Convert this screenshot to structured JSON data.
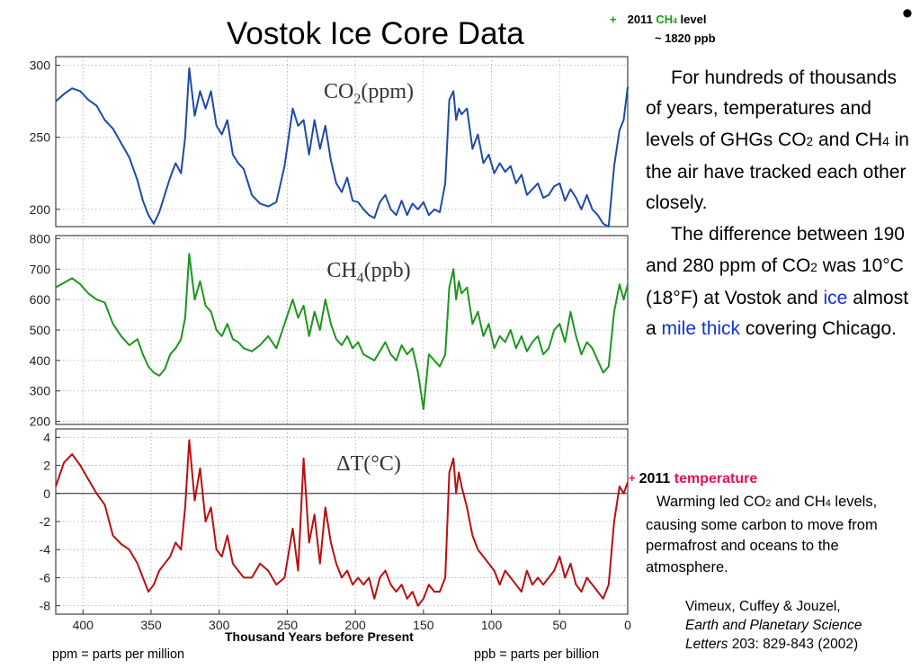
{
  "title": "Vostok Ice Core Data",
  "bullet": "•",
  "ch4_note": {
    "prefix": "+",
    "year": "2011",
    "gas": "CH",
    "sub": "4",
    "suffix": "level",
    "value": "~ 1820 ppb"
  },
  "temp_note": {
    "prefix": "+",
    "year": "2011",
    "label": "temperature"
  },
  "paragraph1": {
    "a": "For hundreds of thousands of years, temperatures and levels of GHGs CO",
    "b": "2",
    "c": " and CH",
    "d": "4",
    "e": " in the air have tracked each other closely."
  },
  "paragraph2": {
    "a": "The difference between 190 and 280 ppm of CO",
    "b": "2",
    "c": " was 10°C (18°F) at Vostok and ",
    "d": "ice",
    "e": " almost a ",
    "f": "mile thick",
    "g": " covering Chicago."
  },
  "paragraph3": {
    "a": "Warming led CO",
    "b": "2",
    "c": " and CH",
    "d": "4",
    "e": " levels, causing some carbon to move from permafrost and oceans to the atmosphere."
  },
  "citation": {
    "line1": "Vimeux, Cuffey & Jouzel,",
    "journal": "Earth and Planetary Science",
    "journal2": "Letters",
    "rest": " 203: 829-843 (2002)"
  },
  "footnote_ppm": "ppm = parts per million",
  "footnote_ppb": "ppb = parts per billion",
  "colors": {
    "co2": "#1f4aa6",
    "ch4": "#1e961e",
    "temp": "#b81010",
    "accent_green": "#1a9a1a",
    "accent_pink": "#e0115f",
    "accent_blue": "#1133cc"
  },
  "chart_data": {
    "type": "line",
    "xlabel": "Thousand Years before Present",
    "x_ticks": [
      400,
      350,
      300,
      250,
      200,
      150,
      100,
      50,
      0
    ],
    "xlim": [
      420,
      0
    ],
    "grid": true,
    "panels": [
      {
        "title": "CO2(ppm)",
        "title_main": "CO",
        "title_sub": "2",
        "title_unit": "(ppm)",
        "ylim": [
          188,
          306
        ],
        "y_ticks": [
          300,
          250,
          200
        ],
        "series": [
          {
            "x": [
              420,
              414,
              408,
              402,
              396,
              390,
              384,
              378,
              372,
              366,
              360,
              356,
              352,
              348,
              344,
              340,
              336,
              332,
              328,
              325,
              322,
              318,
              314,
              310,
              306,
              302,
              298,
              294,
              290,
              286,
              282,
              276,
              270,
              264,
              258,
              252,
              246,
              242,
              238,
              234,
              230,
              226,
              222,
              218,
              214,
              210,
              206,
              202,
              198,
              194,
              190,
              186,
              182,
              178,
              174,
              170,
              166,
              162,
              158,
              154,
              150,
              146,
              142,
              138,
              134,
              131,
              128,
              126,
              124,
              122,
              118,
              114,
              110,
              106,
              102,
              98,
              94,
              90,
              86,
              82,
              78,
              74,
              70,
              66,
              62,
              58,
              54,
              50,
              46,
              42,
              38,
              34,
              30,
              26,
              22,
              18,
              14,
              10,
              6,
              3,
              0
            ],
            "y": [
              275,
              280,
              284,
              282,
              276,
              272,
              262,
              256,
              246,
              236,
              220,
              206,
              196,
              190,
              198,
              210,
              222,
              232,
              225,
              250,
              298,
              265,
              282,
              270,
              282,
              258,
              252,
              262,
              238,
              232,
              228,
              210,
              204,
              202,
              205,
              230,
              270,
              258,
              262,
              238,
              262,
              242,
              258,
              234,
              218,
              212,
              222,
              206,
              205,
              200,
              196,
              194,
              205,
              210,
              200,
              196,
              206,
              196,
              204,
              200,
              205,
              196,
              200,
              198,
              218,
              276,
              282,
              262,
              270,
              266,
              270,
              242,
              252,
              232,
              238,
              225,
              232,
              226,
              230,
              218,
              224,
              210,
              214,
              218,
              208,
              210,
              216,
              218,
              206,
              214,
              208,
              200,
              210,
              200,
              196,
              190,
              188,
              230,
              255,
              262,
              285
            ]
          }
        ]
      },
      {
        "title": "CH4(ppb)",
        "title_main": "CH",
        "title_sub": "4",
        "title_unit": "(ppb)",
        "ylim": [
          190,
          810
        ],
        "y_ticks": [
          800,
          700,
          600,
          500,
          400,
          300,
          200
        ],
        "series": [
          {
            "x": [
              420,
              414,
              408,
              402,
              396,
              390,
              384,
              378,
              372,
              366,
              360,
              356,
              352,
              348,
              344,
              340,
              336,
              332,
              328,
              325,
              322,
              318,
              314,
              310,
              306,
              302,
              298,
              294,
              290,
              286,
              282,
              276,
              270,
              264,
              258,
              252,
              246,
              242,
              238,
              234,
              230,
              226,
              222,
              218,
              214,
              210,
              206,
              202,
              198,
              194,
              190,
              186,
              182,
              178,
              174,
              170,
              166,
              162,
              158,
              154,
              150,
              146,
              142,
              138,
              134,
              131,
              128,
              126,
              124,
              122,
              118,
              114,
              110,
              106,
              102,
              98,
              94,
              90,
              86,
              82,
              78,
              74,
              70,
              66,
              62,
              58,
              54,
              50,
              46,
              42,
              38,
              34,
              30,
              26,
              22,
              18,
              14,
              10,
              6,
              3,
              0
            ],
            "y": [
              640,
              655,
              670,
              650,
              620,
              600,
              590,
              520,
              480,
              450,
              470,
              420,
              380,
              360,
              350,
              370,
              420,
              440,
              470,
              540,
              750,
              600,
              660,
              580,
              560,
              500,
              480,
              520,
              470,
              460,
              440,
              430,
              450,
              480,
              440,
              520,
              600,
              540,
              580,
              480,
              560,
              500,
              600,
              520,
              470,
              450,
              480,
              440,
              460,
              420,
              410,
              400,
              430,
              460,
              420,
              400,
              450,
              420,
              440,
              360,
              240,
              420,
              400,
              380,
              420,
              640,
              700,
              600,
              660,
              620,
              640,
              520,
              560,
              480,
              520,
              440,
              480,
              460,
              500,
              440,
              480,
              430,
              460,
              480,
              420,
              440,
              500,
              520,
              460,
              560,
              480,
              420,
              460,
              440,
              400,
              360,
              380,
              560,
              650,
              600,
              650
            ]
          }
        ]
      },
      {
        "title": "ΔT(°C)",
        "ylim": [
          -8.6,
          4.6
        ],
        "y_ticks": [
          4,
          2,
          0,
          -2,
          -4,
          -6,
          -8
        ],
        "series": [
          {
            "x": [
              420,
              414,
              408,
              402,
              396,
              390,
              384,
              378,
              372,
              366,
              360,
              356,
              352,
              348,
              344,
              340,
              336,
              332,
              328,
              325,
              322,
              318,
              314,
              310,
              306,
              302,
              298,
              294,
              290,
              286,
              282,
              276,
              270,
              264,
              258,
              252,
              246,
              242,
              238,
              234,
              230,
              226,
              222,
              218,
              214,
              210,
              206,
              202,
              198,
              194,
              190,
              186,
              182,
              178,
              174,
              170,
              166,
              162,
              158,
              154,
              150,
              146,
              142,
              138,
              134,
              131,
              128,
              126,
              124,
              122,
              118,
              114,
              110,
              106,
              102,
              98,
              94,
              90,
              86,
              82,
              78,
              74,
              70,
              66,
              62,
              58,
              54,
              50,
              46,
              42,
              38,
              34,
              30,
              26,
              22,
              18,
              14,
              10,
              6,
              3,
              0
            ],
            "y": [
              0.5,
              2.2,
              2.8,
              2.0,
              1.0,
              0,
              -0.8,
              -3.0,
              -3.6,
              -4.0,
              -5.0,
              -6.0,
              -7.0,
              -6.5,
              -5.5,
              -5.0,
              -4.5,
              -3.5,
              -4.0,
              -1.0,
              3.8,
              -0.5,
              1.8,
              -2.0,
              -1.0,
              -4.0,
              -4.5,
              -3.0,
              -5.0,
              -5.5,
              -6.0,
              -6.0,
              -5.0,
              -5.5,
              -6.5,
              -6.0,
              -2.5,
              -5.5,
              2.5,
              -3.5,
              -1.5,
              -5.0,
              -1.0,
              -3.5,
              -5.0,
              -6.0,
              -5.5,
              -6.5,
              -6.0,
              -6.5,
              -6.0,
              -7.5,
              -6.0,
              -5.5,
              -6.5,
              -7.0,
              -6.5,
              -7.5,
              -7.0,
              -8.0,
              -7.5,
              -6.5,
              -7.0,
              -7.0,
              -6.0,
              1.5,
              2.5,
              0,
              1.5,
              0.5,
              -1.0,
              -3.0,
              -4.0,
              -4.5,
              -5.0,
              -5.5,
              -6.5,
              -5.5,
              -6.0,
              -6.5,
              -7.0,
              -5.5,
              -6.5,
              -6.0,
              -6.5,
              -6.0,
              -5.5,
              -4.5,
              -6.0,
              -5.0,
              -6.5,
              -7.0,
              -6.0,
              -6.5,
              -7.0,
              -7.5,
              -6.5,
              -2.0,
              0.5,
              0,
              0.8
            ]
          }
        ]
      }
    ]
  }
}
